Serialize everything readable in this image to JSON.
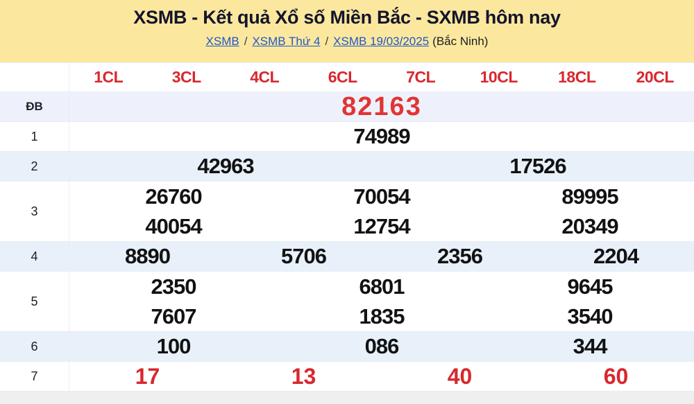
{
  "header": {
    "title": "XSMB - Kết quả Xổ số Miền Bắc - SXMB hôm nay",
    "breadcrumb": {
      "links": [
        "XSMB",
        "XSMB Thứ 4",
        "XSMB 19/03/2025"
      ],
      "separator": "/",
      "suffix": "(Bắc Ninh)"
    }
  },
  "table": {
    "column_headers": [
      "1CL",
      "3CL",
      "4CL",
      "6CL",
      "7CL",
      "10CL",
      "18CL",
      "20CL"
    ],
    "rows": [
      {
        "key": "db",
        "label": "ĐB",
        "style": "special",
        "shaded": true,
        "lines": [
          [
            "82163"
          ]
        ]
      },
      {
        "key": "1",
        "label": "1",
        "style": "",
        "shaded": false,
        "lines": [
          [
            "74989"
          ]
        ]
      },
      {
        "key": "2",
        "label": "2",
        "style": "",
        "shaded": true,
        "lines": [
          [
            "42963",
            "17526"
          ]
        ]
      },
      {
        "key": "3",
        "label": "3",
        "style": "",
        "shaded": false,
        "lines": [
          [
            "26760",
            "70054",
            "89995"
          ],
          [
            "40054",
            "12754",
            "20349"
          ]
        ]
      },
      {
        "key": "4",
        "label": "4",
        "style": "",
        "shaded": true,
        "lines": [
          [
            "8890",
            "5706",
            "2356",
            "2204"
          ]
        ]
      },
      {
        "key": "5",
        "label": "5",
        "style": "",
        "shaded": false,
        "lines": [
          [
            "2350",
            "6801",
            "9645"
          ],
          [
            "7607",
            "1835",
            "3540"
          ]
        ]
      },
      {
        "key": "6",
        "label": "6",
        "style": "",
        "shaded": true,
        "lines": [
          [
            "100",
            "086",
            "344"
          ]
        ]
      },
      {
        "key": "7",
        "label": "7",
        "style": "red",
        "shaded": false,
        "lines": [
          [
            "17",
            "13",
            "40",
            "60"
          ]
        ]
      }
    ]
  },
  "colors": {
    "header_bg": "#FBE89E",
    "title_text": "#14142B",
    "link_blue": "#2355C7",
    "accent_red": "#D7282E",
    "special_red": "#E13434",
    "number_text": "#121212",
    "shaded_row_bg": "#E8F1FA",
    "special_row_bg": "#EEF1FB",
    "row_border": "#E8ECF2",
    "footer_bg": "#EFEFEF"
  }
}
